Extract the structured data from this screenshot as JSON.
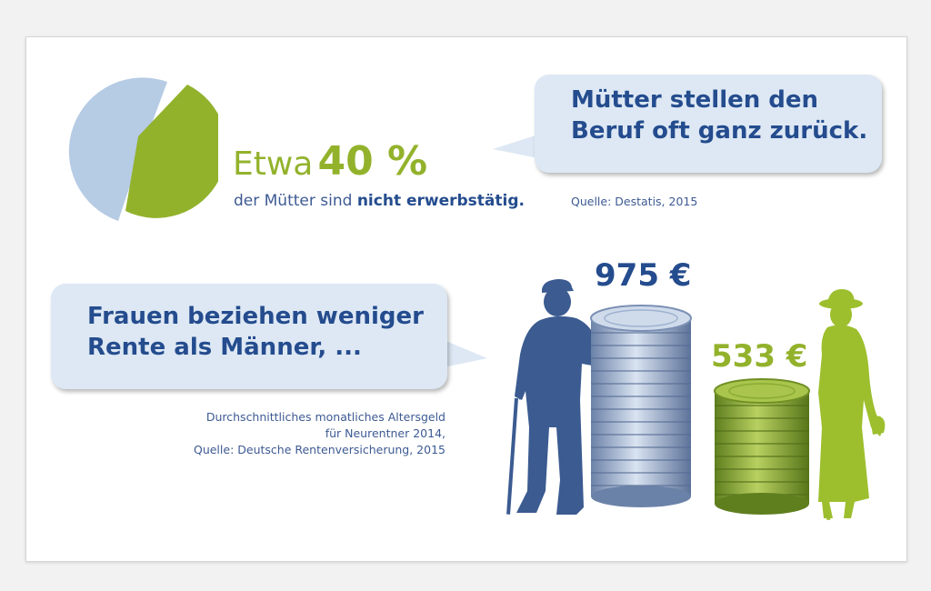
{
  "colors": {
    "accent_green": "#93b22c",
    "accent_blue": "#244c8e",
    "pie_light_blue": "#b6cbe4",
    "bubble_fill": "#dde8f4"
  },
  "pie": {
    "share_not_employed_percent": 40,
    "share_other_percent": 60,
    "icon": "pie-chart-icon"
  },
  "statistic": {
    "prefix": "Etwa",
    "value": "40 %",
    "line2_part1": "der Mütter sind",
    "line2_bold": "nicht erwerbstätig."
  },
  "bubble_mothers": {
    "line1": "Mütter stellen den",
    "line2": "Beruf oft ganz zurück."
  },
  "source_destatis": "Quelle: Destatis, 2015",
  "bubble_women": {
    "line1": "Frauen beziehen weniger",
    "line2": "Rente als Männer, ..."
  },
  "source_pension": {
    "line1": "Durchschnittliches monatliches Altersgeld",
    "line2": "für Neurentner 2014,",
    "line3": "Quelle: Deutsche Rentenversicherung, 2015"
  },
  "pensions": {
    "men_amount": "975 €",
    "women_amount": "533 €",
    "men_icon": "elderly-man-with-cane-icon",
    "women_icon": "elderly-woman-with-cane-icon",
    "men_coins_icon": "silver-coin-stack-icon",
    "women_coins_icon": "green-coin-stack-icon"
  }
}
